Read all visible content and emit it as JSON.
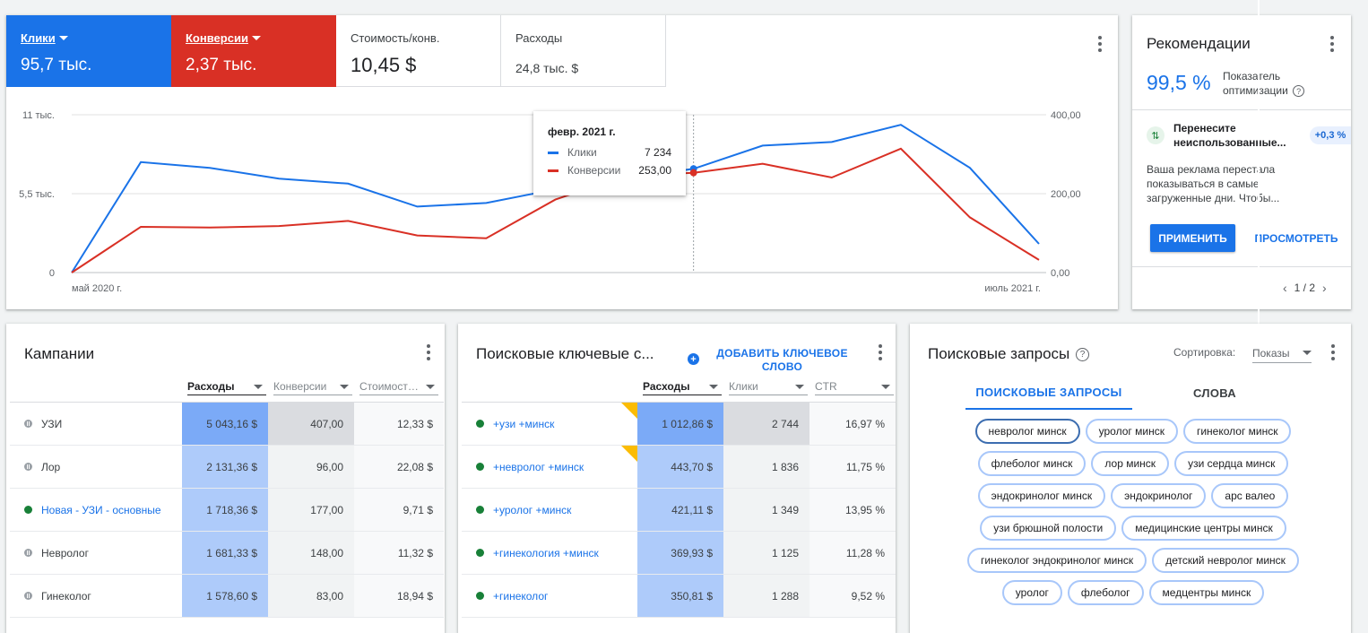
{
  "overview": {
    "metrics": [
      {
        "label": "Клики",
        "value": "95,7 тыс."
      },
      {
        "label": "Конверсии",
        "value": "2,37 тыс."
      },
      {
        "label": "Стоимость/конв.",
        "value": "10,45 $"
      },
      {
        "label": "Расходы",
        "value": "24,8 тыс. $"
      }
    ],
    "tooltip": {
      "title": "февр. 2021 г.",
      "rows": [
        {
          "name": "Клики",
          "value": "7 234"
        },
        {
          "name": "Конверсии",
          "value": "253,00"
        }
      ]
    }
  },
  "chart_data": {
    "type": "line",
    "x_start_label": "май 2020 г.",
    "x_end_label": "июль 2021 г.",
    "left_ticks": [
      "0",
      "5,5 тыс.",
      "11 тыс."
    ],
    "right_ticks": [
      "0,00",
      "200,00",
      "400,00"
    ],
    "left_ylim": [
      0,
      11000
    ],
    "right_ylim": [
      0,
      400
    ],
    "grid": true,
    "highlight_index": 9,
    "series": [
      {
        "name": "Клики",
        "color": "#1a73e8",
        "axis": "left",
        "values": [
          0,
          7700,
          7300,
          6550,
          6200,
          4600,
          4850,
          5800,
          6550,
          7234,
          8850,
          9100,
          10300,
          7300,
          2000
        ]
      },
      {
        "name": "Конверсии",
        "color": "#d93025",
        "axis": "right",
        "values": [
          0,
          116,
          114,
          118,
          131,
          94,
          87,
          185,
          245,
          253,
          276,
          241,
          314,
          140,
          32
        ]
      }
    ]
  },
  "recommendations": {
    "title": "Рекомендации",
    "score": "99,5 %",
    "score_label": "Показатель оптимизации",
    "item_title": "Перенесите неиспользованные...",
    "item_badge": "+0,3 %",
    "item_desc": "Ваша реклама перестала показываться в самые загруженные дни. Чтобы...",
    "apply_label": "ПРИМЕНИТЬ",
    "view_label": "ПРОСМОТРЕТЬ",
    "pager": "1 / 2"
  },
  "campaigns": {
    "title": "Кампании",
    "columns": [
      "Расходы",
      "Конверсии",
      "Стоимост…"
    ],
    "rows": [
      {
        "name": "УЗИ",
        "status": "paused",
        "cost": "5 043,16 $",
        "conv": "407,00",
        "cpa": "12,33 $"
      },
      {
        "name": "Лор",
        "status": "paused",
        "cost": "2 131,36 $",
        "conv": "96,00",
        "cpa": "22,08 $"
      },
      {
        "name": "Новая - УЗИ - основные",
        "status": "active",
        "cost": "1 718,36 $",
        "conv": "177,00",
        "cpa": "9,71 $"
      },
      {
        "name": "Невролог",
        "status": "paused",
        "cost": "1 681,33 $",
        "conv": "148,00",
        "cpa": "11,32 $"
      },
      {
        "name": "Гинеколог",
        "status": "paused",
        "cost": "1 578,60 $",
        "conv": "83,00",
        "cpa": "18,94 $"
      }
    ]
  },
  "keywords": {
    "title": "Поисковые ключевые с...",
    "add_label": "ДОБАВИТЬ КЛЮЧЕВОЕ СЛОВО",
    "columns": [
      "Расходы",
      "Клики",
      "CTR"
    ],
    "rows": [
      {
        "name": "+узи +минск",
        "cost": "1 012,86 $",
        "clicks": "2 744",
        "ctr": "16,97 %",
        "flag": true
      },
      {
        "name": "+невролог +минск",
        "cost": "443,70 $",
        "clicks": "1 836",
        "ctr": "11,75 %",
        "flag": true
      },
      {
        "name": "+уролог +минск",
        "cost": "421,11 $",
        "clicks": "1 349",
        "ctr": "13,95 %",
        "flag": false
      },
      {
        "name": "+гинекология +минск",
        "cost": "369,93 $",
        "clicks": "1 125",
        "ctr": "11,28 %",
        "flag": false
      },
      {
        "name": "+гинеколог",
        "cost": "350,81 $",
        "clicks": "1 288",
        "ctr": "9,52 %",
        "flag": false
      }
    ]
  },
  "queries": {
    "title": "Поисковые запросы",
    "sort_label": "Сортировка:",
    "sort_value": "Показы",
    "tabs": [
      "ПОИСКОВЫЕ ЗАПРОСЫ",
      "СЛОВА"
    ],
    "chips": [
      "невролог минск",
      "уролог минск",
      "гинеколог минск",
      "флеболог минск",
      "лор минск",
      "узи сердца минск",
      "эндокринолог минск",
      "эндокринолог",
      "арс валео",
      "узи брюшной полости",
      "медицинские центры минск",
      "гинеколог эндокринолог минск",
      "детский невролог минск",
      "уролог",
      "флеболог",
      "медцентры минск"
    ]
  }
}
